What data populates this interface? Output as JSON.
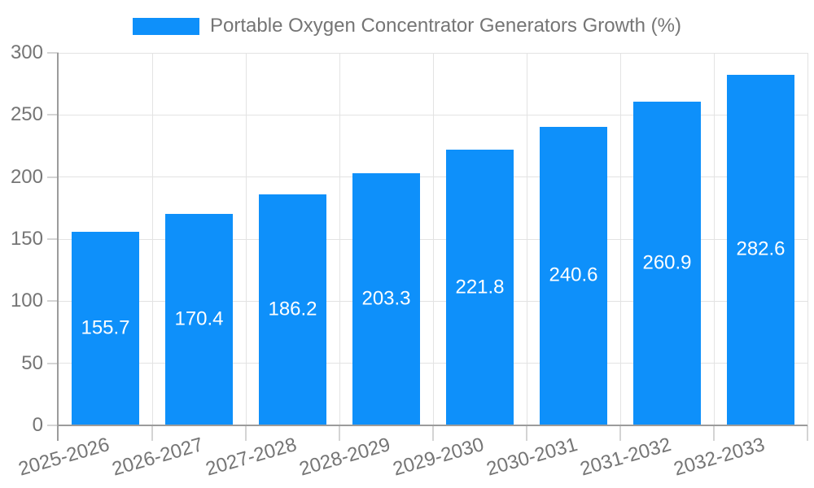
{
  "legend": {
    "label": "Portable Oxygen Concentrator Generators Growth (%)",
    "swatch_color": "#0E90FA"
  },
  "chart_data": {
    "type": "bar",
    "title": "Portable Oxygen Concentrator Generators Growth (%)",
    "categories": [
      "2025-2026",
      "2026-2027",
      "2027-2028",
      "2028-2029",
      "2029-2030",
      "2030-2031",
      "2031-2032",
      "2032-2033"
    ],
    "values": [
      155.7,
      170.4,
      186.2,
      203.3,
      221.8,
      240.6,
      260.9,
      282.6
    ],
    "value_labels": [
      "155.7",
      "170.4",
      "186.2",
      "203.3",
      "221.8",
      "240.6",
      "260.9",
      "282.6"
    ],
    "xlabel": "",
    "ylabel": "",
    "ylim": [
      0,
      300
    ],
    "yticks": [
      0,
      50,
      100,
      150,
      200,
      250,
      300
    ],
    "grid": true,
    "legend_position": "top",
    "bar_color": "#0E90FA",
    "value_label_color": "#FFFFFF"
  },
  "colors": {
    "bar": "#0E90FA",
    "grid": "#E3E3E3",
    "axis": "#9B9B9B",
    "tick": "#D4D4D4",
    "text": "#757575",
    "background": "#FFFFFF"
  }
}
